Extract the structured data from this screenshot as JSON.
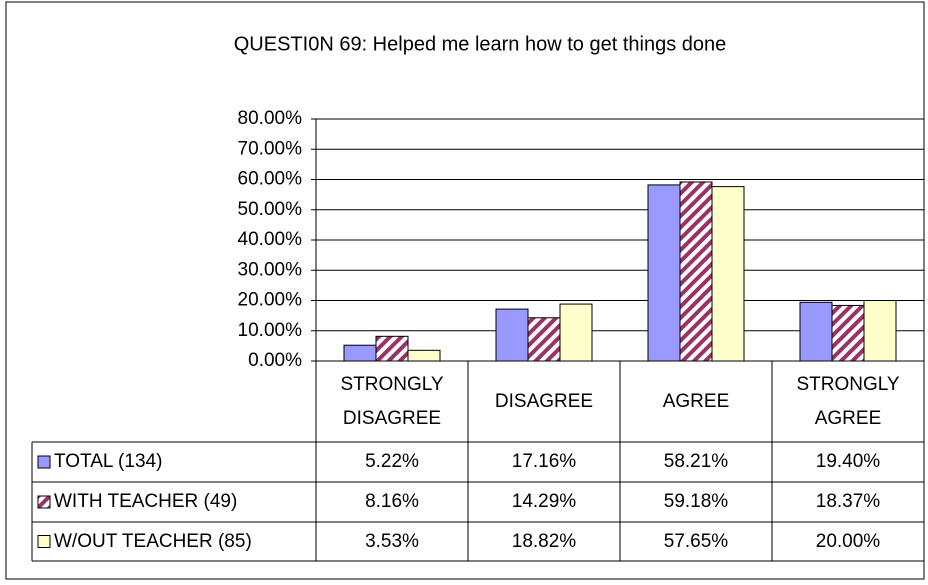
{
  "chart_data": {
    "type": "bar",
    "title": "QUESTI0N 69: Helped me learn how to get things done",
    "categories": [
      "STRONGLY DISAGREE",
      "DISAGREE",
      "AGREE",
      "STRONGLY AGREE"
    ],
    "series": [
      {
        "name": "TOTAL (134)",
        "color": "#9999ff",
        "values": [
          5.22,
          17.16,
          58.21,
          19.4
        ],
        "value_labels": [
          "5.22%",
          "17.16%",
          "58.21%",
          "19.40%"
        ]
      },
      {
        "name": "WITH TEACHER (49)",
        "color": "#993366",
        "pattern": "diagonal",
        "values": [
          8.16,
          14.29,
          59.18,
          18.37
        ],
        "value_labels": [
          "8.16%",
          "14.29%",
          "59.18%",
          "18.37%"
        ]
      },
      {
        "name": "W/OUT TEACHER (85)",
        "color": "#ffffcc",
        "values": [
          3.53,
          18.82,
          57.65,
          20.0
        ],
        "value_labels": [
          "3.53%",
          "18.82%",
          "57.65%",
          "20.00%"
        ]
      }
    ],
    "ylim": [
      0,
      80
    ],
    "yticks": [
      {
        "value": 0,
        "label": "0.00%"
      },
      {
        "value": 10,
        "label": "10.00%"
      },
      {
        "value": 20,
        "label": "20.00%"
      },
      {
        "value": 30,
        "label": "30.00%"
      },
      {
        "value": 40,
        "label": "40.00%"
      },
      {
        "value": 50,
        "label": "50.00%"
      },
      {
        "value": 60,
        "label": "60.00%"
      },
      {
        "value": 70,
        "label": "70.00%"
      },
      {
        "value": 80,
        "label": "80.00%"
      }
    ],
    "grid": true
  }
}
